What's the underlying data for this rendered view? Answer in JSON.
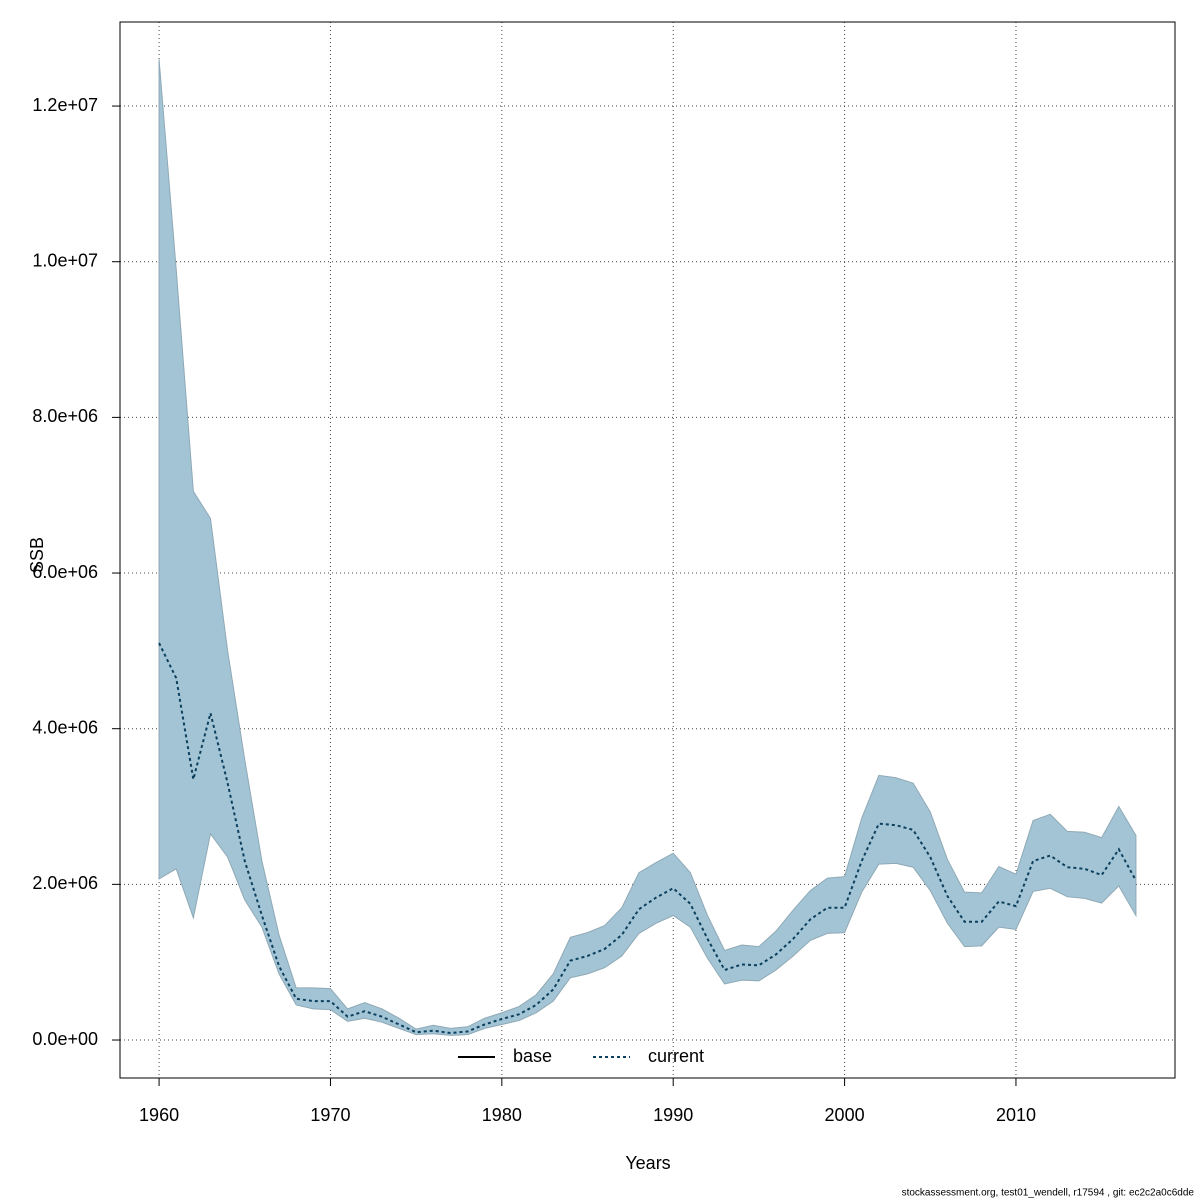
{
  "chart_data": {
    "type": "line",
    "xlabel": "Years",
    "ylabel": "SSB",
    "footer": "stockassessment.org, test01_wendell, r17594 , git: ec2c2a0c6dde",
    "x": [
      1960,
      1961,
      1962,
      1963,
      1964,
      1965,
      1966,
      1967,
      1968,
      1969,
      1970,
      1971,
      1972,
      1973,
      1974,
      1975,
      1976,
      1977,
      1978,
      1979,
      1980,
      1981,
      1982,
      1983,
      1984,
      1985,
      1986,
      1987,
      1988,
      1989,
      1990,
      1991,
      1992,
      1993,
      1994,
      1995,
      1996,
      1997,
      1998,
      1999,
      2000,
      2001,
      2002,
      2003,
      2004,
      2005,
      2006,
      2007,
      2008,
      2009,
      2010,
      2011,
      2012,
      2013,
      2014,
      2015,
      2016,
      2017
    ],
    "series": [
      {
        "name": "base",
        "color": "#000000"
      },
      {
        "name": "current",
        "color": "#0b3f5e",
        "band_color": "#a3c4d4",
        "values": [
          5100000.0,
          4650000.0,
          3350000.0,
          4200000.0,
          3300000.0,
          2300000.0,
          1600000.0,
          950000.0,
          530000.0,
          500000.0,
          500000.0,
          300000.0,
          370000.0,
          300000.0,
          200000.0,
          100000.0,
          120000.0,
          90000.0,
          110000.0,
          200000.0,
          270000.0,
          330000.0,
          450000.0,
          650000.0,
          1020000.0,
          1080000.0,
          1170000.0,
          1350000.0,
          1680000.0,
          1830000.0,
          1950000.0,
          1750000.0,
          1300000.0,
          900000.0,
          970000.0,
          960000.0,
          1100000.0,
          1300000.0,
          1550000.0,
          1700000.0,
          1700000.0,
          2300000.0,
          2780000.0,
          2760000.0,
          2700000.0,
          2350000.0,
          1850000.0,
          1520000.0,
          1520000.0,
          1780000.0,
          1720000.0,
          2300000.0,
          2370000.0,
          2220000.0,
          2200000.0,
          2120000.0,
          2450000.0,
          2050000.0
        ],
        "upper": [
          12600000.0,
          9900000.0,
          7050000.0,
          6700000.0,
          5000000.0,
          3600000.0,
          2300000.0,
          1350000.0,
          670000.0,
          670000.0,
          660000.0,
          400000.0,
          480000.0,
          400000.0,
          280000.0,
          140000.0,
          190000.0,
          150000.0,
          170000.0,
          280000.0,
          350000.0,
          430000.0,
          580000.0,
          850000.0,
          1320000.0,
          1380000.0,
          1470000.0,
          1700000.0,
          2150000.0,
          2280000.0,
          2400000.0,
          2150000.0,
          1600000.0,
          1150000.0,
          1220000.0,
          1200000.0,
          1400000.0,
          1670000.0,
          1920000.0,
          2080000.0,
          2100000.0,
          2850000.0,
          3400000.0,
          3370000.0,
          3300000.0,
          2930000.0,
          2320000.0,
          1900000.0,
          1890000.0,
          2230000.0,
          2130000.0,
          2820000.0,
          2900000.0,
          2680000.0,
          2670000.0,
          2600000.0,
          3000000.0,
          2630000.0
        ],
        "lower": [
          2070000.0,
          2200000.0,
          1570000.0,
          2650000.0,
          2350000.0,
          1800000.0,
          1450000.0,
          850000.0,
          450000.0,
          400000.0,
          390000.0,
          240000.0,
          280000.0,
          230000.0,
          150000.0,
          70000.0,
          80000.0,
          60000.0,
          70000.0,
          150000.0,
          200000.0,
          250000.0,
          350000.0,
          500000.0,
          800000.0,
          850000.0,
          930000.0,
          1080000.0,
          1370000.0,
          1500000.0,
          1600000.0,
          1450000.0,
          1050000.0,
          720000.0,
          770000.0,
          760000.0,
          900000.0,
          1080000.0,
          1280000.0,
          1370000.0,
          1380000.0,
          1900000.0,
          2260000.0,
          2270000.0,
          2220000.0,
          1920000.0,
          1500000.0,
          1200000.0,
          1210000.0,
          1450000.0,
          1420000.0,
          1910000.0,
          1950000.0,
          1840000.0,
          1820000.0,
          1760000.0,
          1980000.0,
          1600000.0
        ]
      }
    ],
    "xlim": [
      1957.72,
      2019.28
    ],
    "ylim": [
      -488000,
      13080000
    ],
    "xticks": [
      1960,
      1970,
      1980,
      1990,
      2000,
      2010
    ],
    "yticks": [
      {
        "value": 0,
        "label": "0.0e+00"
      },
      {
        "value": 2000000,
        "label": "2.0e+06"
      },
      {
        "value": 4000000,
        "label": "4.0e+06"
      },
      {
        "value": 6000000,
        "label": "6.0e+06"
      },
      {
        "value": 8000000,
        "label": "8.0e+06"
      },
      {
        "value": 10000000,
        "label": "1.0e+07"
      },
      {
        "value": 12000000,
        "label": "1.2e+07"
      }
    ],
    "grid": true,
    "legend": "bottom"
  }
}
